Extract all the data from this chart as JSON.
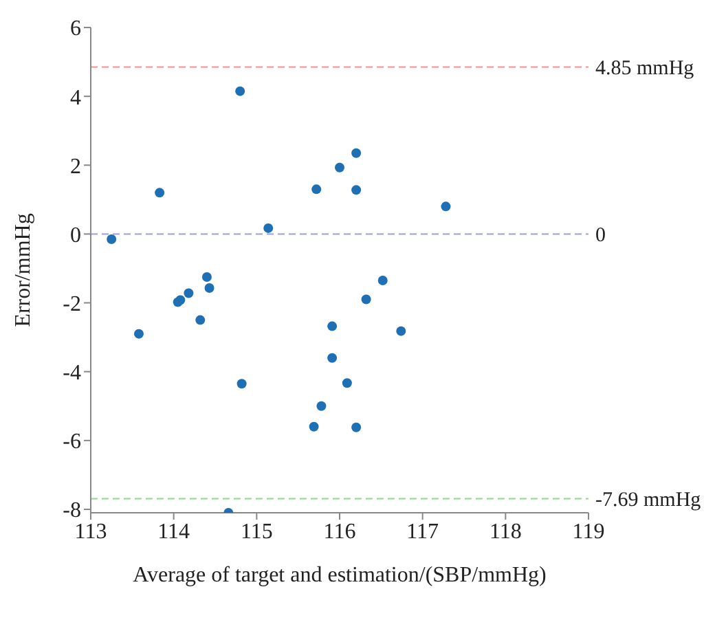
{
  "chart_data": {
    "type": "scatter",
    "xlabel": "Average of target and estimation/(SBP/mmHg)",
    "ylabel": "Error/mmHg",
    "x": [
      113.25,
      113.83,
      114.8,
      115.14,
      115.72,
      116.0,
      116.2,
      116.2,
      117.28,
      113.58,
      114.05,
      114.08,
      114.18,
      114.32,
      114.4,
      114.43,
      114.82,
      114.66,
      115.69,
      115.78,
      115.91,
      115.91,
      116.09,
      116.2,
      116.32,
      116.52,
      116.74
    ],
    "series": [
      {
        "color": "#1f6fb5",
        "values": [
          -0.15,
          1.2,
          4.15,
          0.17,
          1.3,
          1.93,
          2.35,
          1.28,
          0.8,
          -2.9,
          -1.98,
          -1.92,
          -1.72,
          -2.5,
          -1.25,
          -1.57,
          -4.35,
          -8.1,
          -5.6,
          -5.0,
          -2.68,
          -3.6,
          -4.33,
          -5.62,
          -1.9,
          -1.35,
          -2.82
        ]
      }
    ],
    "xlim": [
      113,
      119
    ],
    "xticks": [
      113,
      114,
      115,
      116,
      117,
      118,
      119
    ],
    "ylim": [
      -8.1,
      6
    ],
    "yticks": [
      -8,
      -6,
      -4,
      -2,
      0,
      2,
      4,
      6
    ],
    "ref_lines": [
      {
        "axis": "y",
        "value": 4.85,
        "label": "4.85 mmHg",
        "color": "#ff8c8c",
        "line_style": "dashed"
      },
      {
        "axis": "y",
        "value": 0,
        "label": "0",
        "color": "#9d9dd8",
        "line_style": "dashed"
      },
      {
        "axis": "y",
        "value": -7.69,
        "label": "-7.69 mmHg",
        "color": "#8cdc8c",
        "line_style": "dashed"
      }
    ],
    "marker": "circle",
    "grid": false,
    "legend": false
  }
}
